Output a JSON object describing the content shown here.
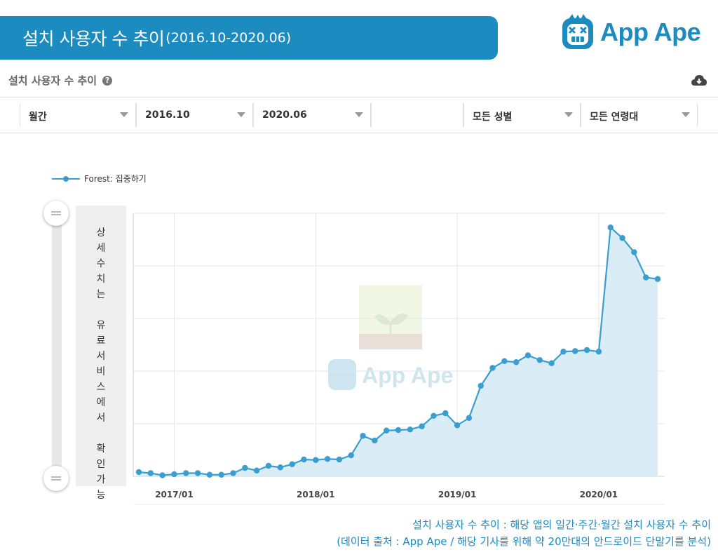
{
  "header": {
    "title": "설치 사용자 수 추이",
    "period": "(2016.10-2020.06)"
  },
  "logo": {
    "text": "App Ape"
  },
  "section": {
    "title": "설치 사용자 수 추이",
    "help_icon": "question-circle-icon",
    "download_icon": "cloud-download-icon"
  },
  "filters": [
    {
      "label": "월간"
    },
    {
      "label": "2016.10"
    },
    {
      "label": "2020.06"
    },
    {
      "label": ""
    },
    {
      "label": "모든 성별"
    },
    {
      "label": "모든 연령대"
    }
  ],
  "side_panel": {
    "text": "상세수치는\n\n유료서비스에서\n\n확인가능"
  },
  "colors": {
    "accent": "#1b8bc0",
    "line": "#3a9fd0",
    "fill": "#d6eaf5"
  },
  "chart_data": {
    "type": "area",
    "series": [
      {
        "name": "Forest: 집중하기",
        "x": [
          "2016-10",
          "2016-11",
          "2016-12",
          "2017-01",
          "2017-02",
          "2017-03",
          "2017-04",
          "2017-05",
          "2017-06",
          "2017-07",
          "2017-08",
          "2017-09",
          "2017-10",
          "2017-11",
          "2017-12",
          "2018-01",
          "2018-02",
          "2018-03",
          "2018-04",
          "2018-05",
          "2018-06",
          "2018-07",
          "2018-08",
          "2018-09",
          "2018-10",
          "2018-11",
          "2018-12",
          "2019-01",
          "2019-02",
          "2019-03",
          "2019-04",
          "2019-05",
          "2019-06",
          "2019-07",
          "2019-08",
          "2019-09",
          "2019-10",
          "2019-11",
          "2019-12",
          "2020-01",
          "2020-02",
          "2020-03",
          "2020-04",
          "2020-05",
          "2020-06"
        ],
        "values": [
          0.8,
          0.6,
          0.2,
          0.4,
          0.6,
          0.6,
          0.3,
          0.3,
          0.6,
          1.6,
          1.1,
          2.0,
          1.7,
          2.3,
          3.2,
          3.1,
          3.3,
          3.2,
          4.0,
          7.7,
          6.8,
          8.7,
          8.8,
          8.9,
          9.5,
          11.5,
          12.0,
          9.7,
          11.1,
          17.2,
          20.6,
          21.9,
          21.7,
          23.0,
          22.1,
          21.5,
          23.7,
          23.8,
          24.0,
          23.7,
          47.3,
          45.3,
          42.6,
          37.8,
          37.5
        ]
      }
    ],
    "x_tick_labels": [
      "2017/01",
      "2018/01",
      "2019/01",
      "2020/01"
    ],
    "x_tick_months": [
      "2017-01",
      "2018-01",
      "2019-01",
      "2020-01"
    ],
    "ylim": [
      0,
      50
    ],
    "y_tick_labels_visible": false,
    "grid": true,
    "legend": "top-left"
  },
  "caption": {
    "line1": "설치 사용자 수 추이 : 해당 앱의 일간·주간·월간 설치 사용자 수 추이",
    "line2": "(데이터 출처 : App Ape / 해당 기사를 위해 약 20만대의 안드로이드 단말기를 분석)"
  }
}
